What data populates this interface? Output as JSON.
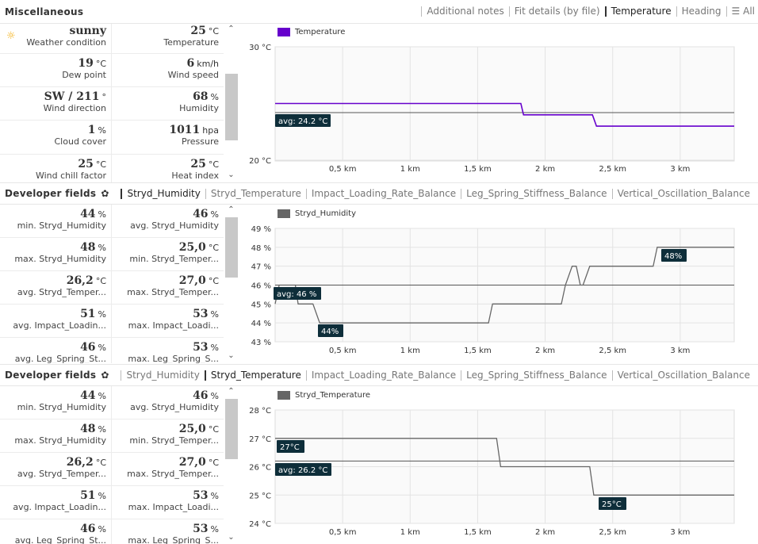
{
  "misc": {
    "title": "Miscellaneous",
    "tabs": [
      "Additional notes",
      "Fit details (by file)",
      "Temperature",
      "Heading"
    ],
    "active_tab": "Temperature",
    "all_label": "All",
    "cells": [
      {
        "value": "sunny",
        "unit": "",
        "label": "Weather condition",
        "icon": "sun-icon"
      },
      {
        "value": "25",
        "unit": "°C",
        "label": "Temperature"
      },
      {
        "value": "19",
        "unit": "°C",
        "label": "Dew point"
      },
      {
        "value": "6",
        "unit": "km/h",
        "label": "Wind speed"
      },
      {
        "value": "SW / 211",
        "unit": "°",
        "label": "Wind direction"
      },
      {
        "value": "68",
        "unit": "%",
        "label": "Humidity"
      },
      {
        "value": "1",
        "unit": "%",
        "label": "Cloud cover"
      },
      {
        "value": "1011",
        "unit": "hpa",
        "label": "Pressure"
      },
      {
        "value": "25",
        "unit": "°C",
        "label": "Wind chill factor"
      },
      {
        "value": "25",
        "unit": "°C",
        "label": "Heat index"
      }
    ],
    "chart": {
      "legend": "Temperature",
      "color": "#6600cc",
      "y_ticks": [
        "30 °C",
        "20 °C"
      ],
      "x_ticks": [
        "0,5 km",
        "1 km",
        "1,5 km",
        "2 km",
        "2,5 km",
        "3 km"
      ],
      "avg_label": "avg: 24.2 °C"
    }
  },
  "dev1": {
    "title": "Developer fields",
    "tabs": [
      "Stryd_Humidity",
      "Stryd_Temperature",
      "Impact_Loading_Rate_Balance",
      "Leg_Spring_Stiffness_Balance",
      "Vertical_Oscillation_Balance"
    ],
    "active_tab": "Stryd_Humidity",
    "cells": [
      {
        "value": "44",
        "unit": "%",
        "label": "min. Stryd_Humidity"
      },
      {
        "value": "46",
        "unit": "%",
        "label": "avg. Stryd_Humidity"
      },
      {
        "value": "48",
        "unit": "%",
        "label": "max. Stryd_Humidity"
      },
      {
        "value": "25,0",
        "unit": "°C",
        "label": "min. Stryd_Temper..."
      },
      {
        "value": "26,2",
        "unit": "°C",
        "label": "avg. Stryd_Temper..."
      },
      {
        "value": "27,0",
        "unit": "°C",
        "label": "max. Stryd_Temper..."
      },
      {
        "value": "51",
        "unit": "%",
        "label": "avg. Impact_Loadin..."
      },
      {
        "value": "53",
        "unit": "%",
        "label": "max. Impact_Loadi..."
      },
      {
        "value": "46",
        "unit": "%",
        "label": "avg. Leg_Spring_St..."
      },
      {
        "value": "53",
        "unit": "%",
        "label": "max. Leg_Spring_S..."
      }
    ],
    "chart": {
      "legend": "Stryd_Humidity",
      "color": "#666666",
      "y_ticks": [
        "49 %",
        "48 %",
        "47 %",
        "46 %",
        "45 %",
        "44 %",
        "43 %"
      ],
      "x_ticks": [
        "0,5 km",
        "1 km",
        "1,5 km",
        "2 km",
        "2,5 km",
        "3 km"
      ],
      "avg_label": "avg: 46 %",
      "min_label": "44%",
      "max_label": "48%"
    }
  },
  "dev2": {
    "title": "Developer fields",
    "tabs": [
      "Stryd_Humidity",
      "Stryd_Temperature",
      "Impact_Loading_Rate_Balance",
      "Leg_Spring_Stiffness_Balance",
      "Vertical_Oscillation_Balance"
    ],
    "active_tab": "Stryd_Temperature",
    "cells": [
      {
        "value": "44",
        "unit": "%",
        "label": "min. Stryd_Humidity"
      },
      {
        "value": "46",
        "unit": "%",
        "label": "avg. Stryd_Humidity"
      },
      {
        "value": "48",
        "unit": "%",
        "label": "max. Stryd_Humidity"
      },
      {
        "value": "25,0",
        "unit": "°C",
        "label": "min. Stryd_Temper..."
      },
      {
        "value": "26,2",
        "unit": "°C",
        "label": "avg. Stryd_Temper..."
      },
      {
        "value": "27,0",
        "unit": "°C",
        "label": "max. Stryd_Temper..."
      },
      {
        "value": "51",
        "unit": "%",
        "label": "avg. Impact_Loadin..."
      },
      {
        "value": "53",
        "unit": "%",
        "label": "max. Impact_Loadi..."
      },
      {
        "value": "46",
        "unit": "%",
        "label": "avg. Leg_Spring_St..."
      },
      {
        "value": "53",
        "unit": "%",
        "label": "max. Leg_Spring_S..."
      }
    ],
    "chart": {
      "legend": "Stryd_Temperature",
      "color": "#666666",
      "y_ticks": [
        "28 °C",
        "27 °C",
        "26 °C",
        "25 °C",
        "24 °C"
      ],
      "x_ticks": [
        "0,5 km",
        "1 km",
        "1,5 km",
        "2 km",
        "2,5 km",
        "3 km"
      ],
      "avg_label": "avg: 26.2 °C",
      "max_label": "27°C",
      "min_label": "25°C"
    }
  },
  "chart_data": [
    {
      "type": "line",
      "series": [
        {
          "name": "Temperature",
          "x": [
            0,
            1.82,
            1.84,
            2.35,
            2.38,
            3.4
          ],
          "y": [
            25,
            25,
            24,
            24,
            23,
            23
          ]
        }
      ],
      "xlabel": "",
      "ylabel": "",
      "xlim": [
        0,
        3.4
      ],
      "ylim": [
        20,
        30
      ],
      "y_tick_labels": [
        "30 °C",
        "20 °C"
      ],
      "x_tick_labels": [
        "0,5 km",
        "1 km",
        "1,5 km",
        "2 km",
        "2,5 km",
        "3 km"
      ],
      "annotations": [
        "avg: 24.2 °C"
      ],
      "grid": true,
      "legend": "top-left"
    },
    {
      "type": "line",
      "series": [
        {
          "name": "Stryd_Humidity",
          "x": [
            0,
            0.03,
            0.15,
            0.17,
            0.28,
            0.33,
            1.58,
            1.61,
            2.12,
            2.15,
            2.2,
            2.23,
            2.26,
            2.28,
            2.33,
            2.36,
            2.8,
            2.83,
            3.4
          ],
          "y": [
            45,
            46,
            46,
            45,
            45,
            44,
            44,
            45,
            45,
            46,
            47,
            47,
            46,
            46,
            47,
            47,
            47,
            48,
            48
          ]
        }
      ],
      "xlabel": "",
      "ylabel": "",
      "xlim": [
        0,
        3.4
      ],
      "ylim": [
        43,
        49
      ],
      "y_tick_labels": [
        "49 %",
        "48 %",
        "47 %",
        "46 %",
        "45 %",
        "44 %",
        "43 %"
      ],
      "x_tick_labels": [
        "0,5 km",
        "1 km",
        "1,5 km",
        "2 km",
        "2,5 km",
        "3 km"
      ],
      "annotations": [
        "avg: 46 %",
        "44%",
        "48%"
      ],
      "grid": true,
      "legend": "top-left"
    },
    {
      "type": "line",
      "series": [
        {
          "name": "Stryd_Temperature",
          "x": [
            0,
            1.64,
            1.67,
            2.33,
            2.36,
            3.4
          ],
          "y": [
            27,
            27,
            26,
            26,
            25,
            25
          ]
        }
      ],
      "xlabel": "",
      "ylabel": "",
      "xlim": [
        0,
        3.4
      ],
      "ylim": [
        24,
        28
      ],
      "y_tick_labels": [
        "28 °C",
        "27 °C",
        "26 °C",
        "25 °C",
        "24 °C"
      ],
      "x_tick_labels": [
        "0,5 km",
        "1 km",
        "1,5 km",
        "2 km",
        "2,5 km",
        "3 km"
      ],
      "annotations": [
        "avg: 26.2 °C",
        "27°C",
        "25°C"
      ],
      "grid": true,
      "legend": "top-left"
    }
  ]
}
